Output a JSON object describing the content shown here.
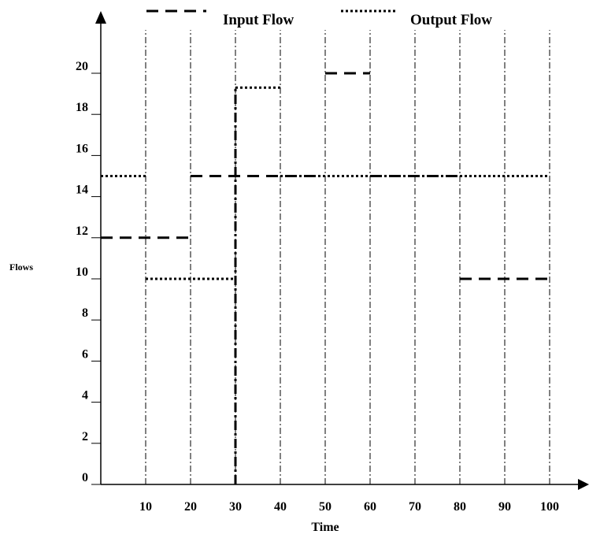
{
  "chart_data": {
    "type": "line",
    "title": "",
    "xlabel": "Time",
    "ylabel": "Flows",
    "xlim": [
      0,
      100
    ],
    "ylim": [
      0,
      22
    ],
    "x_ticks": [
      10,
      20,
      30,
      40,
      50,
      60,
      70,
      80,
      90,
      100
    ],
    "y_ticks": [
      0,
      2,
      4,
      6,
      8,
      10,
      12,
      14,
      16,
      18,
      20
    ],
    "vertical_gridlines_at": [
      10,
      20,
      30,
      40,
      50,
      60,
      70,
      80,
      90,
      100
    ],
    "grid": "vertical dash-dot",
    "legend_position": "top",
    "series": [
      {
        "name": "Input Flow",
        "style": "dashed",
        "segments": [
          {
            "x0": 0,
            "x1": 20,
            "y": 12
          },
          {
            "x0": 20,
            "x1": 50,
            "y": 15
          },
          {
            "x0": 50,
            "x1": 60,
            "y": 20
          },
          {
            "x0": 60,
            "x1": 80,
            "y": 15
          },
          {
            "x0": 80,
            "x1": 100,
            "y": 10
          }
        ]
      },
      {
        "name": "Output Flow",
        "style": "dotted",
        "segments": [
          {
            "x0": 0,
            "x1": 10,
            "y": 15
          },
          {
            "x0": 10,
            "x1": 30,
            "y": 10
          },
          {
            "x0": 30,
            "x1": 40,
            "y": 19.3
          },
          {
            "x0": 40,
            "x1": 100,
            "y": 15
          }
        ]
      }
    ],
    "colors": {
      "line": "#000000",
      "background": "#ffffff"
    }
  }
}
